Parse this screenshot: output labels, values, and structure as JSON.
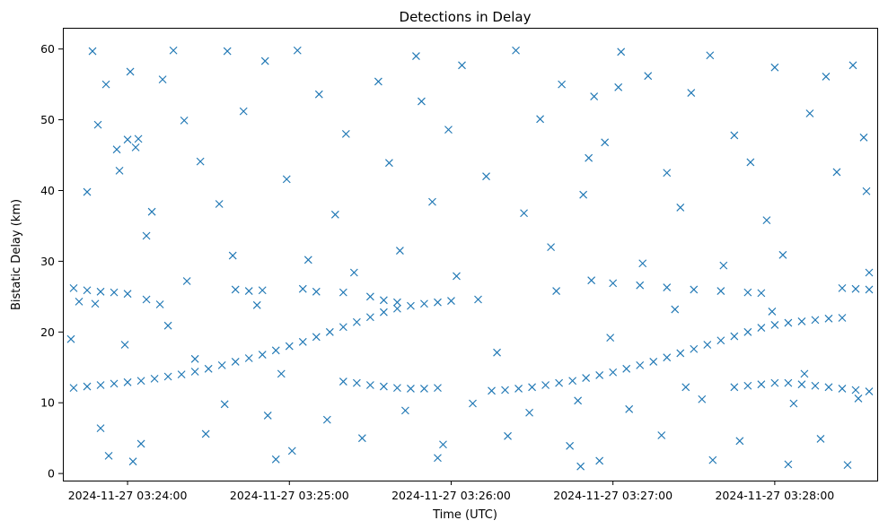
{
  "chart_data": {
    "type": "scatter",
    "title": "Detections in Delay",
    "xlabel": "Time (UTC)",
    "ylabel": "Bistatic Delay (km)",
    "x_axis_kind": "datetime",
    "x_range": [
      "2024-11-27 03:23:36",
      "2024-11-27 03:28:38"
    ],
    "ylim": [
      -1,
      63
    ],
    "x_ticks": [
      {
        "value": "2024-11-27 03:24:00",
        "label": "2024-11-27 03:24:00"
      },
      {
        "value": "2024-11-27 03:25:00",
        "label": "2024-11-27 03:25:00"
      },
      {
        "value": "2024-11-27 03:26:00",
        "label": "2024-11-27 03:26:00"
      },
      {
        "value": "2024-11-27 03:27:00",
        "label": "2024-11-27 03:27:00"
      },
      {
        "value": "2024-11-27 03:28:00",
        "label": "2024-11-27 03:28:00"
      }
    ],
    "y_ticks": [
      0,
      10,
      20,
      30,
      40,
      50,
      60
    ],
    "marker": "x",
    "color": "#1f77b4",
    "grid": false,
    "legend": "none",
    "series": [
      {
        "points": [
          [
            "2024-11-27 03:23:40",
            12.1
          ],
          [
            "2024-11-27 03:23:45",
            12.3
          ],
          [
            "2024-11-27 03:23:50",
            12.5
          ],
          [
            "2024-11-27 03:23:55",
            12.7
          ],
          [
            "2024-11-27 03:24:00",
            12.9
          ],
          [
            "2024-11-27 03:24:05",
            13.1
          ],
          [
            "2024-11-27 03:24:10",
            13.4
          ],
          [
            "2024-11-27 03:24:15",
            13.7
          ],
          [
            "2024-11-27 03:24:20",
            14.0
          ],
          [
            "2024-11-27 03:24:25",
            14.4
          ],
          [
            "2024-11-27 03:24:30",
            14.8
          ],
          [
            "2024-11-27 03:24:35",
            15.3
          ],
          [
            "2024-11-27 03:24:40",
            15.8
          ],
          [
            "2024-11-27 03:24:45",
            16.3
          ],
          [
            "2024-11-27 03:24:50",
            16.8
          ],
          [
            "2024-11-27 03:24:55",
            17.4
          ],
          [
            "2024-11-27 03:25:00",
            18.0
          ],
          [
            "2024-11-27 03:25:05",
            18.6
          ],
          [
            "2024-11-27 03:25:10",
            19.3
          ],
          [
            "2024-11-27 03:25:15",
            20.0
          ],
          [
            "2024-11-27 03:25:20",
            20.7
          ],
          [
            "2024-11-27 03:25:25",
            21.4
          ],
          [
            "2024-11-27 03:25:30",
            22.1
          ],
          [
            "2024-11-27 03:25:35",
            22.8
          ],
          [
            "2024-11-27 03:25:40",
            23.3
          ],
          [
            "2024-11-27 03:25:45",
            23.7
          ],
          [
            "2024-11-27 03:25:50",
            24.0
          ],
          [
            "2024-11-27 03:25:55",
            24.2
          ],
          [
            "2024-11-27 03:26:00",
            24.4
          ],
          [
            "2024-11-27 03:26:10",
            24.6
          ],
          [
            "2024-11-27 03:23:40",
            26.2
          ],
          [
            "2024-11-27 03:23:45",
            25.9
          ],
          [
            "2024-11-27 03:23:50",
            25.7
          ],
          [
            "2024-11-27 03:23:55",
            25.6
          ],
          [
            "2024-11-27 03:24:00",
            25.4
          ],
          [
            "2024-11-27 03:23:42",
            24.3
          ],
          [
            "2024-11-27 03:23:48",
            24.0
          ],
          [
            "2024-11-27 03:24:07",
            24.6
          ],
          [
            "2024-11-27 03:24:12",
            23.9
          ],
          [
            "2024-11-27 03:24:40",
            26.0
          ],
          [
            "2024-11-27 03:24:45",
            25.8
          ],
          [
            "2024-11-27 03:24:50",
            25.9
          ],
          [
            "2024-11-27 03:25:05",
            26.1
          ],
          [
            "2024-11-27 03:25:10",
            25.7
          ],
          [
            "2024-11-27 03:25:20",
            25.6
          ],
          [
            "2024-11-27 03:25:30",
            25.0
          ],
          [
            "2024-11-27 03:25:35",
            24.5
          ],
          [
            "2024-11-27 03:25:40",
            24.2
          ],
          [
            "2024-11-27 03:25:20",
            13.0
          ],
          [
            "2024-11-27 03:25:25",
            12.8
          ],
          [
            "2024-11-27 03:25:30",
            12.5
          ],
          [
            "2024-11-27 03:25:35",
            12.3
          ],
          [
            "2024-11-27 03:25:40",
            12.1
          ],
          [
            "2024-11-27 03:25:45",
            12.0
          ],
          [
            "2024-11-27 03:25:50",
            12.0
          ],
          [
            "2024-11-27 03:25:55",
            12.1
          ],
          [
            "2024-11-27 03:26:15",
            11.7
          ],
          [
            "2024-11-27 03:26:20",
            11.8
          ],
          [
            "2024-11-27 03:26:25",
            12.0
          ],
          [
            "2024-11-27 03:26:30",
            12.2
          ],
          [
            "2024-11-27 03:26:35",
            12.5
          ],
          [
            "2024-11-27 03:26:40",
            12.8
          ],
          [
            "2024-11-27 03:26:45",
            13.1
          ],
          [
            "2024-11-27 03:26:50",
            13.5
          ],
          [
            "2024-11-27 03:26:55",
            13.9
          ],
          [
            "2024-11-27 03:27:00",
            14.3
          ],
          [
            "2024-11-27 03:27:05",
            14.8
          ],
          [
            "2024-11-27 03:27:10",
            15.3
          ],
          [
            "2024-11-27 03:27:15",
            15.8
          ],
          [
            "2024-11-27 03:27:20",
            16.4
          ],
          [
            "2024-11-27 03:27:25",
            17.0
          ],
          [
            "2024-11-27 03:27:30",
            17.6
          ],
          [
            "2024-11-27 03:27:35",
            18.2
          ],
          [
            "2024-11-27 03:27:40",
            18.8
          ],
          [
            "2024-11-27 03:27:45",
            19.4
          ],
          [
            "2024-11-27 03:27:50",
            20.0
          ],
          [
            "2024-11-27 03:27:55",
            20.6
          ],
          [
            "2024-11-27 03:28:00",
            21.0
          ],
          [
            "2024-11-27 03:28:05",
            21.3
          ],
          [
            "2024-11-27 03:28:10",
            21.5
          ],
          [
            "2024-11-27 03:28:15",
            21.7
          ],
          [
            "2024-11-27 03:28:20",
            21.9
          ],
          [
            "2024-11-27 03:28:25",
            22.0
          ],
          [
            "2024-11-27 03:27:00",
            26.9
          ],
          [
            "2024-11-27 03:27:10",
            26.6
          ],
          [
            "2024-11-27 03:27:20",
            26.3
          ],
          [
            "2024-11-27 03:27:30",
            26.0
          ],
          [
            "2024-11-27 03:27:40",
            25.8
          ],
          [
            "2024-11-27 03:27:50",
            25.6
          ],
          [
            "2024-11-27 03:27:55",
            25.5
          ],
          [
            "2024-11-27 03:28:25",
            26.2
          ],
          [
            "2024-11-27 03:28:30",
            26.1
          ],
          [
            "2024-11-27 03:28:35",
            26.0
          ],
          [
            "2024-11-27 03:27:45",
            12.2
          ],
          [
            "2024-11-27 03:27:50",
            12.4
          ],
          [
            "2024-11-27 03:27:55",
            12.6
          ],
          [
            "2024-11-27 03:28:00",
            12.8
          ],
          [
            "2024-11-27 03:28:05",
            12.8
          ],
          [
            "2024-11-27 03:28:10",
            12.6
          ],
          [
            "2024-11-27 03:28:15",
            12.4
          ],
          [
            "2024-11-27 03:28:20",
            12.2
          ],
          [
            "2024-11-27 03:28:25",
            12.0
          ],
          [
            "2024-11-27 03:28:30",
            11.8
          ],
          [
            "2024-11-27 03:28:35",
            11.6
          ],
          [
            "2024-11-27 03:23:47",
            59.7
          ],
          [
            "2024-11-27 03:24:17",
            59.8
          ],
          [
            "2024-11-27 03:24:37",
            59.7
          ],
          [
            "2024-11-27 03:25:03",
            59.8
          ],
          [
            "2024-11-27 03:25:47",
            59.0
          ],
          [
            "2024-11-27 03:26:24",
            59.8
          ],
          [
            "2024-11-27 03:27:03",
            59.6
          ],
          [
            "2024-11-27 03:27:36",
            59.1
          ],
          [
            "2024-11-27 03:28:00",
            57.4
          ],
          [
            "2024-11-27 03:23:52",
            55.0
          ],
          [
            "2024-11-27 03:24:01",
            56.8
          ],
          [
            "2024-11-27 03:24:13",
            55.7
          ],
          [
            "2024-11-27 03:24:51",
            58.3
          ],
          [
            "2024-11-27 03:25:11",
            53.6
          ],
          [
            "2024-11-27 03:25:33",
            55.4
          ],
          [
            "2024-11-27 03:26:04",
            57.7
          ],
          [
            "2024-11-27 03:26:41",
            55.0
          ],
          [
            "2024-11-27 03:27:13",
            56.2
          ],
          [
            "2024-11-27 03:27:29",
            53.8
          ],
          [
            "2024-11-27 03:28:13",
            50.9
          ],
          [
            "2024-11-27 03:28:29",
            57.7
          ],
          [
            "2024-11-27 03:23:49",
            49.3
          ],
          [
            "2024-11-27 03:24:04",
            47.3
          ],
          [
            "2024-11-27 03:24:21",
            49.9
          ],
          [
            "2024-11-27 03:24:43",
            51.2
          ],
          [
            "2024-11-27 03:25:21",
            48.0
          ],
          [
            "2024-11-27 03:25:59",
            48.6
          ],
          [
            "2024-11-27 03:26:33",
            50.1
          ],
          [
            "2024-11-27 03:26:57",
            46.8
          ],
          [
            "2024-11-27 03:27:45",
            47.8
          ],
          [
            "2024-11-27 03:28:33",
            47.5
          ],
          [
            "2024-11-27 03:23:57",
            42.8
          ],
          [
            "2024-11-27 03:24:27",
            44.1
          ],
          [
            "2024-11-27 03:24:59",
            41.6
          ],
          [
            "2024-11-27 03:25:37",
            43.9
          ],
          [
            "2024-11-27 03:26:13",
            42.0
          ],
          [
            "2024-11-27 03:26:51",
            44.6
          ],
          [
            "2024-11-27 03:27:20",
            42.5
          ],
          [
            "2024-11-27 03:27:51",
            44.0
          ],
          [
            "2024-11-27 03:28:23",
            42.6
          ],
          [
            "2024-11-27 03:23:45",
            39.8
          ],
          [
            "2024-11-27 03:24:09",
            37.0
          ],
          [
            "2024-11-27 03:24:34",
            38.1
          ],
          [
            "2024-11-27 03:25:17",
            36.6
          ],
          [
            "2024-11-27 03:25:53",
            38.4
          ],
          [
            "2024-11-27 03:26:27",
            36.8
          ],
          [
            "2024-11-27 03:26:49",
            39.4
          ],
          [
            "2024-11-27 03:27:25",
            37.6
          ],
          [
            "2024-11-27 03:27:57",
            35.8
          ],
          [
            "2024-11-27 03:28:34",
            39.9
          ],
          [
            "2024-11-27 03:24:07",
            33.6
          ],
          [
            "2024-11-27 03:24:39",
            30.8
          ],
          [
            "2024-11-27 03:25:07",
            30.2
          ],
          [
            "2024-11-27 03:25:41",
            31.5
          ],
          [
            "2024-11-27 03:26:37",
            32.0
          ],
          [
            "2024-11-27 03:27:11",
            29.7
          ],
          [
            "2024-11-27 03:27:41",
            29.4
          ],
          [
            "2024-11-27 03:28:03",
            30.9
          ],
          [
            "2024-11-27 03:28:35",
            28.4
          ],
          [
            "2024-11-27 03:23:39",
            19.0
          ],
          [
            "2024-11-27 03:23:59",
            18.2
          ],
          [
            "2024-11-27 03:24:15",
            20.9
          ],
          [
            "2024-11-27 03:24:36",
            9.8
          ],
          [
            "2024-11-27 03:24:52",
            8.2
          ],
          [
            "2024-11-27 03:25:14",
            7.6
          ],
          [
            "2024-11-27 03:25:43",
            8.9
          ],
          [
            "2024-11-27 03:26:08",
            9.9
          ],
          [
            "2024-11-27 03:26:29",
            8.6
          ],
          [
            "2024-11-27 03:26:47",
            10.3
          ],
          [
            "2024-11-27 03:27:06",
            9.1
          ],
          [
            "2024-11-27 03:27:33",
            10.5
          ],
          [
            "2024-11-27 03:28:07",
            9.9
          ],
          [
            "2024-11-27 03:28:31",
            10.6
          ],
          [
            "2024-11-27 03:23:50",
            6.4
          ],
          [
            "2024-11-27 03:24:05",
            4.2
          ],
          [
            "2024-11-27 03:24:29",
            5.6
          ],
          [
            "2024-11-27 03:25:01",
            3.2
          ],
          [
            "2024-11-27 03:25:27",
            5.0
          ],
          [
            "2024-11-27 03:25:57",
            4.1
          ],
          [
            "2024-11-27 03:26:21",
            5.3
          ],
          [
            "2024-11-27 03:26:44",
            3.9
          ],
          [
            "2024-11-27 03:27:18",
            5.4
          ],
          [
            "2024-11-27 03:27:47",
            4.6
          ],
          [
            "2024-11-27 03:28:17",
            4.9
          ],
          [
            "2024-11-27 03:23:53",
            2.5
          ],
          [
            "2024-11-27 03:24:02",
            1.7
          ],
          [
            "2024-11-27 03:24:55",
            2.0
          ],
          [
            "2024-11-27 03:25:55",
            2.2
          ],
          [
            "2024-11-27 03:26:55",
            1.8
          ],
          [
            "2024-11-27 03:26:48",
            1.0
          ],
          [
            "2024-11-27 03:27:37",
            1.9
          ],
          [
            "2024-11-27 03:28:05",
            1.3
          ],
          [
            "2024-11-27 03:28:27",
            1.2
          ],
          [
            "2024-11-27 03:24:22",
            27.2
          ],
          [
            "2024-11-27 03:24:48",
            23.8
          ],
          [
            "2024-11-27 03:25:24",
            28.4
          ],
          [
            "2024-11-27 03:26:02",
            27.9
          ],
          [
            "2024-11-27 03:26:39",
            25.8
          ],
          [
            "2024-11-27 03:26:52",
            27.3
          ],
          [
            "2024-11-27 03:27:23",
            23.2
          ],
          [
            "2024-11-27 03:27:59",
            22.9
          ],
          [
            "2024-11-27 03:24:25",
            16.2
          ],
          [
            "2024-11-27 03:24:57",
            14.1
          ],
          [
            "2024-11-27 03:26:17",
            17.1
          ],
          [
            "2024-11-27 03:26:59",
            19.2
          ],
          [
            "2024-11-27 03:27:27",
            12.2
          ],
          [
            "2024-11-27 03:28:11",
            14.1
          ],
          [
            "2024-11-27 03:23:56",
            45.8
          ],
          [
            "2024-11-27 03:24:00",
            47.2
          ],
          [
            "2024-11-27 03:24:03",
            46.1
          ],
          [
            "2024-11-27 03:25:49",
            52.6
          ],
          [
            "2024-11-27 03:26:53",
            53.3
          ],
          [
            "2024-11-27 03:27:02",
            54.6
          ],
          [
            "2024-11-27 03:28:19",
            56.1
          ]
        ]
      }
    ]
  }
}
